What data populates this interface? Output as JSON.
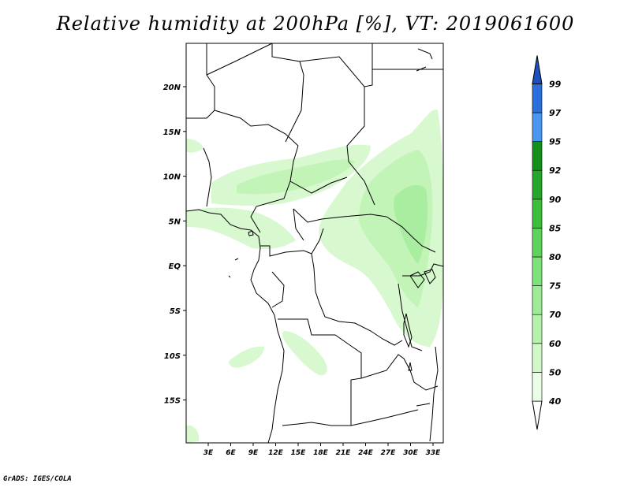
{
  "title": "Relative humidity at 200hPa [%], VT: 2019061600",
  "credit": "GrADS: IGES/COLA",
  "map": {
    "lat_labels": [
      "20N",
      "15N",
      "10N",
      "5N",
      "EQ",
      "5S",
      "10S",
      "15S"
    ],
    "lon_labels": [
      "3E",
      "6E",
      "9E",
      "12E",
      "15E",
      "18E",
      "21E",
      "24E",
      "27E",
      "30E",
      "33E"
    ]
  },
  "colorbar": {
    "levels": [
      "40",
      "50",
      "60",
      "70",
      "75",
      "80",
      "85",
      "90",
      "92",
      "95",
      "97",
      "99"
    ],
    "colors": [
      "#ffffff",
      "#eafde6",
      "#d2f8c8",
      "#b6f2ad",
      "#9deb96",
      "#7ee27a",
      "#5ed35c",
      "#3cbe3b",
      "#25a529",
      "#12901a",
      "#4b97ef",
      "#2a6fdc",
      "#1c4fc0"
    ]
  }
}
